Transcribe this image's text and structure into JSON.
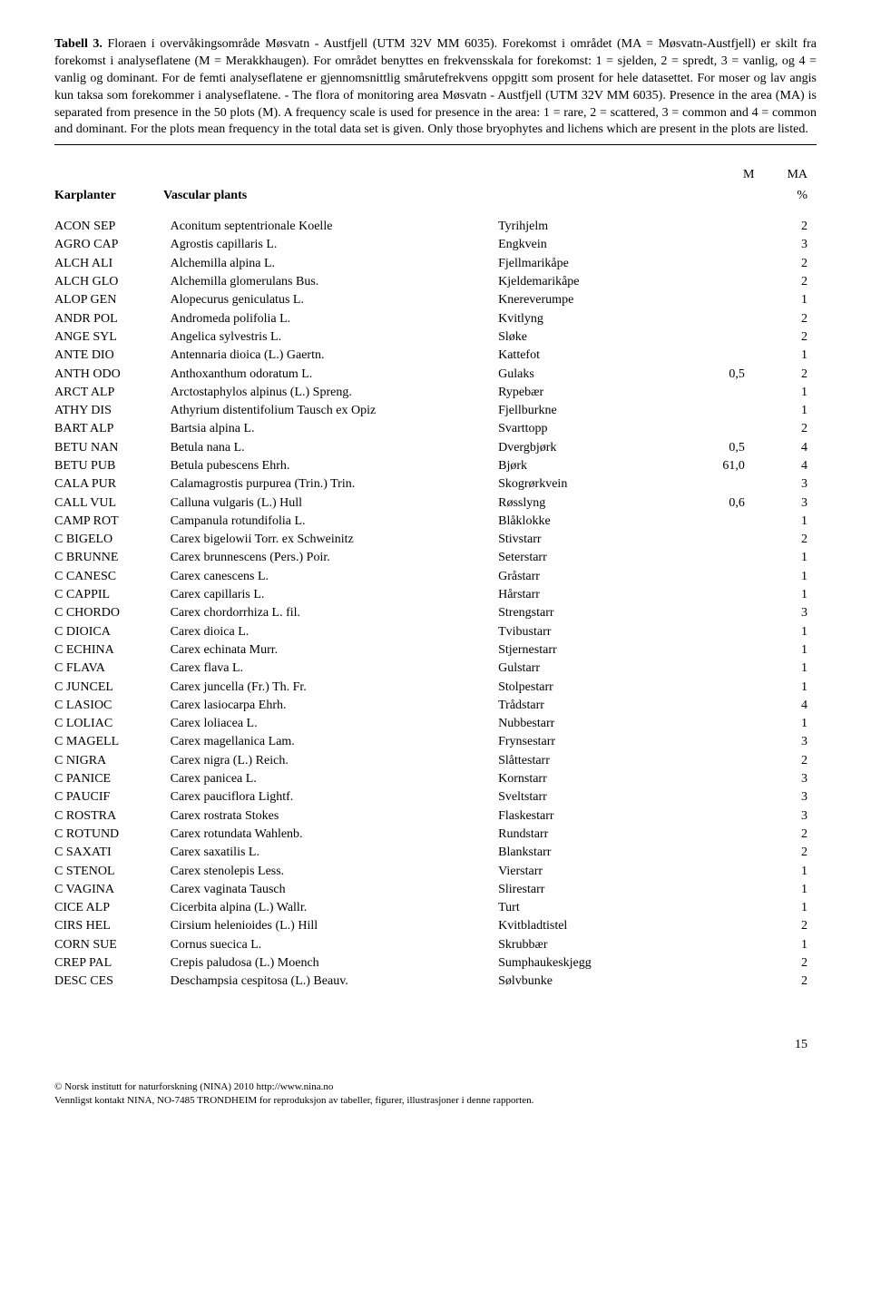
{
  "header": {
    "title_bold": "Tabell 3.",
    "text": " Floraen i overvåkingsområde Møsvatn - Austfjell (UTM 32V MM 6035). Forekomst i området (MA = Møsvatn-Austfjell) er skilt fra forekomst i analyseflatene (M = Merakkhaugen). For området benyttes en frekvensskala for forekomst: 1 = sjelden, 2 = spredt, 3 = vanlig, og 4 = vanlig og dominant. For de femti analyseflatene er gjennomsnittlig smårutefrekvens oppgitt som prosent for hele datasettet. For moser og lav angis kun taksa som forekommer i analyseflatene. - The flora of monitoring area Møsvatn - Austfjell (UTM 32V MM 6035). Presence in the area (MA) is separated from presence in the 50 plots (M). A frequency scale is used for presence in the area: 1 = rare, 2 = scattered, 3 = common and 4 = common and dominant. For the plots mean frequency in the total data set is given. Only those bryophytes and lichens which are present in the plots are listed."
  },
  "column_labels": {
    "m": "M",
    "ma": "MA",
    "pct": "%",
    "karplanter": "Karplanter",
    "vascular": "Vascular plants"
  },
  "rows": [
    {
      "code": "ACON SEP",
      "latin": "Aconitum septentrionale Koelle",
      "norsk": "Tyrihjelm",
      "m": "",
      "ma": "2"
    },
    {
      "code": "AGRO CAP",
      "latin": "Agrostis capillaris L.",
      "norsk": "Engkvein",
      "m": "",
      "ma": "3"
    },
    {
      "code": "ALCH ALI",
      "latin": "Alchemilla alpina L.",
      "norsk": "Fjellmarikåpe",
      "m": "",
      "ma": "2"
    },
    {
      "code": "ALCH GLO",
      "latin": "Alchemilla glomerulans Bus.",
      "norsk": "Kjeldemarikåpe",
      "m": "",
      "ma": "2"
    },
    {
      "code": "ALOP GEN",
      "latin": "Alopecurus geniculatus L.",
      "norsk": "Knereverumpe",
      "m": "",
      "ma": "1"
    },
    {
      "code": "ANDR POL",
      "latin": "Andromeda polifolia L.",
      "norsk": "Kvitlyng",
      "m": "",
      "ma": "2"
    },
    {
      "code": "ANGE SYL",
      "latin": "Angelica sylvestris L.",
      "norsk": "Sløke",
      "m": "",
      "ma": "2"
    },
    {
      "code": "ANTE DIO",
      "latin": "Antennaria dioica (L.) Gaertn.",
      "norsk": "Kattefot",
      "m": "",
      "ma": "1"
    },
    {
      "code": "ANTH ODO",
      "latin": "Anthoxanthum odoratum L.",
      "norsk": "Gulaks",
      "m": "0,5",
      "ma": "2"
    },
    {
      "code": "ARCT ALP",
      "latin": "Arctostaphylos alpinus (L.) Spreng.",
      "norsk": "Rypebær",
      "m": "",
      "ma": "1"
    },
    {
      "code": "ATHY DIS",
      "latin": "Athyrium distentifolium Tausch ex Opiz",
      "norsk": "Fjellburkne",
      "m": "",
      "ma": "1"
    },
    {
      "code": "BART ALP",
      "latin": "Bartsia alpina L.",
      "norsk": "Svarttopp",
      "m": "",
      "ma": "2"
    },
    {
      "code": "BETU NAN",
      "latin": "Betula nana L.",
      "norsk": "Dvergbjørk",
      "m": "0,5",
      "ma": "4"
    },
    {
      "code": "BETU PUB",
      "latin": "Betula pubescens Ehrh.",
      "norsk": "Bjørk",
      "m": "61,0",
      "ma": "4"
    },
    {
      "code": "CALA PUR",
      "latin": "Calamagrostis purpurea (Trin.) Trin.",
      "norsk": "Skogrørkvein",
      "m": "",
      "ma": "3"
    },
    {
      "code": "CALL VUL",
      "latin": "Calluna vulgaris (L.) Hull",
      "norsk": "Røsslyng",
      "m": "0,6",
      "ma": "3"
    },
    {
      "code": "CAMP ROT",
      "latin": "Campanula rotundifolia L.",
      "norsk": "Blåklokke",
      "m": "",
      "ma": "1"
    },
    {
      "code": "C BIGELO",
      "latin": "Carex bigelowii Torr. ex Schweinitz",
      "norsk": "Stivstarr",
      "m": "",
      "ma": "2"
    },
    {
      "code": "C BRUNNE",
      "latin": "Carex brunnescens (Pers.) Poir.",
      "norsk": "Seterstarr",
      "m": "",
      "ma": "1"
    },
    {
      "code": "C CANESC",
      "latin": "Carex canescens L.",
      "norsk": "Gråstarr",
      "m": "",
      "ma": "1"
    },
    {
      "code": "C CAPPIL",
      "latin": "Carex capillaris L.",
      "norsk": "Hårstarr",
      "m": "",
      "ma": "1"
    },
    {
      "code": "C CHORDO",
      "latin": "Carex chordorrhiza L. fil.",
      "norsk": "Strengstarr",
      "m": "",
      "ma": "3"
    },
    {
      "code": "C DIOICA",
      "latin": "Carex dioica L.",
      "norsk": "Tvibustarr",
      "m": "",
      "ma": "1"
    },
    {
      "code": "C ECHINA",
      "latin": "Carex echinata Murr.",
      "norsk": "Stjernestarr",
      "m": "",
      "ma": "1"
    },
    {
      "code": "C FLAVA",
      "latin": "Carex flava L.",
      "norsk": "Gulstarr",
      "m": "",
      "ma": "1"
    },
    {
      "code": "C JUNCEL",
      "latin": "Carex juncella (Fr.) Th. Fr.",
      "norsk": "Stolpestarr",
      "m": "",
      "ma": "1"
    },
    {
      "code": "C LASIOC",
      "latin": "Carex lasiocarpa Ehrh.",
      "norsk": "Trådstarr",
      "m": "",
      "ma": "4"
    },
    {
      "code": "C LOLIAC",
      "latin": "Carex loliacea L.",
      "norsk": "Nubbestarr",
      "m": "",
      "ma": "1"
    },
    {
      "code": "C MAGELL",
      "latin": "Carex magellanica Lam.",
      "norsk": "Frynsestarr",
      "m": "",
      "ma": "3"
    },
    {
      "code": "C NIGRA",
      "latin": "Carex nigra (L.) Reich.",
      "norsk": "Slåttestarr",
      "m": "",
      "ma": "2"
    },
    {
      "code": "C PANICE",
      "latin": "Carex panicea L.",
      "norsk": "Kornstarr",
      "m": "",
      "ma": "3"
    },
    {
      "code": "C PAUCIF",
      "latin": "Carex pauciflora Lightf.",
      "norsk": "Sveltstarr",
      "m": "",
      "ma": "3"
    },
    {
      "code": "C ROSTRA",
      "latin": "Carex rostrata Stokes",
      "norsk": "Flaskestarr",
      "m": "",
      "ma": "3"
    },
    {
      "code": "C ROTUND",
      "latin": "Carex rotundata Wahlenb.",
      "norsk": "Rundstarr",
      "m": "",
      "ma": "2"
    },
    {
      "code": "C SAXATI",
      "latin": "Carex saxatilis L.",
      "norsk": "Blankstarr",
      "m": "",
      "ma": "2"
    },
    {
      "code": "C STENOL",
      "latin": "Carex stenolepis Less.",
      "norsk": "Vierstarr",
      "m": "",
      "ma": "1"
    },
    {
      "code": "C VAGINA",
      "latin": "Carex vaginata Tausch",
      "norsk": "Slirestarr",
      "m": "",
      "ma": "1"
    },
    {
      "code": "CICE ALP",
      "latin": "Cicerbita alpina (L.) Wallr.",
      "norsk": "Turt",
      "m": "",
      "ma": "1"
    },
    {
      "code": "CIRS HEL",
      "latin": "Cirsium helenioides (L.) Hill",
      "norsk": "Kvitbladtistel",
      "m": "",
      "ma": "2"
    },
    {
      "code": "CORN SUE",
      "latin": "Cornus suecica L.",
      "norsk": "Skrubbær",
      "m": "",
      "ma": "1"
    },
    {
      "code": "CREP PAL",
      "latin": "Crepis paludosa (L.) Moench",
      "norsk": "Sumphaukeskjegg",
      "m": "",
      "ma": "2"
    },
    {
      "code": "DESC CES",
      "latin": "Deschampsia cespitosa (L.) Beauv.",
      "norsk": "Sølvbunke",
      "m": "",
      "ma": "2"
    }
  ],
  "page_number": "15",
  "footer": {
    "line1": "© Norsk institutt for naturforskning (NINA) 2010 http://www.nina.no",
    "line2": "Vennligst kontakt NINA, NO-7485 TRONDHEIM for reproduksjon av tabeller, figurer, illustrasjoner i denne rapporten."
  }
}
